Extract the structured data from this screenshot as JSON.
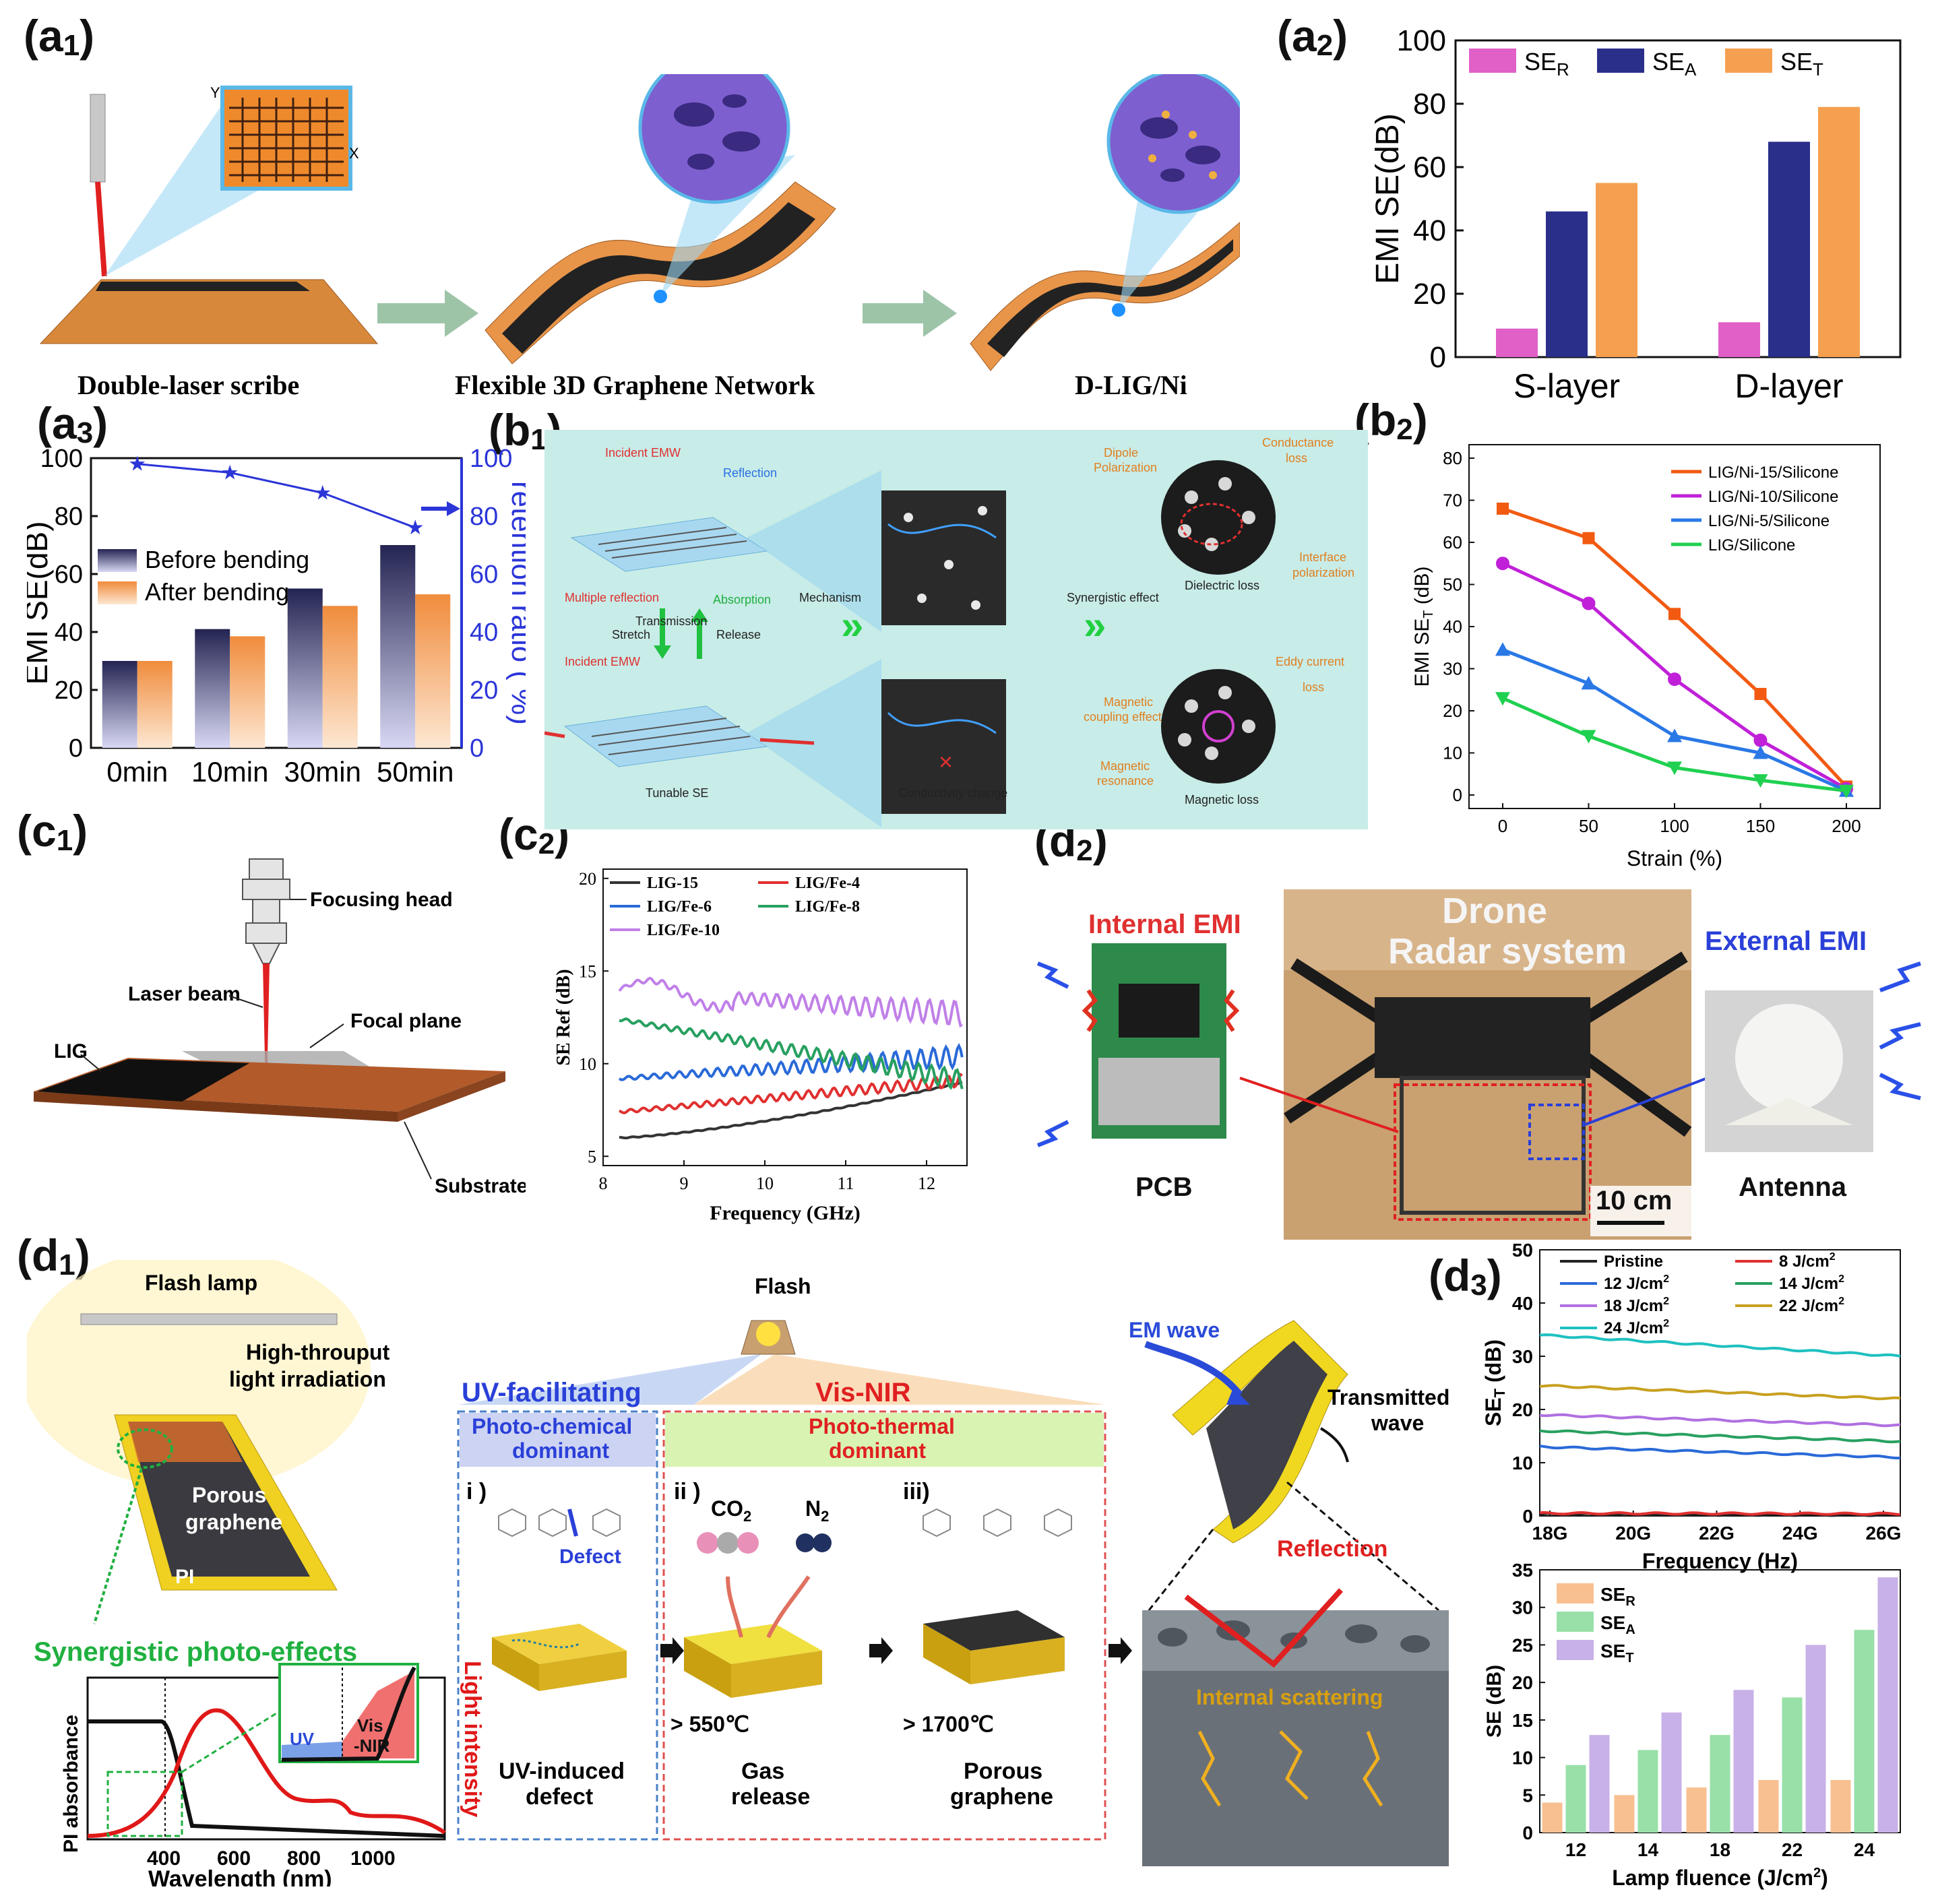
{
  "labels": {
    "a1": {
      "main": "(a",
      "sub": "1",
      "close": ")"
    },
    "a2": {
      "main": "(a",
      "sub": "2",
      "close": ")"
    },
    "a3": {
      "main": "(a",
      "sub": "3",
      "close": ")"
    },
    "b1": {
      "main": "(b",
      "sub": "1",
      "close": ")"
    },
    "b2": {
      "main": "(b",
      "sub": "2",
      "close": ")"
    },
    "c1": {
      "main": "(c",
      "sub": "1",
      "close": ")"
    },
    "c2": {
      "main": "(c",
      "sub": "2",
      "close": ")"
    },
    "d1": {
      "main": "(d",
      "sub": "1",
      "close": ")"
    },
    "d2": {
      "main": "(d",
      "sub": "2",
      "close": ")"
    },
    "d3": {
      "main": "(d",
      "sub": "3",
      "close": ")"
    }
  },
  "a1": {
    "axis_y": "Y",
    "axis_x": "X",
    "step1": "Double-laser scribe",
    "step2": "Flexible 3D Graphene Network",
    "step3": "D-LIG/Ni"
  },
  "b1": {
    "incident_top": "Incident EMW",
    "reflection": "Reflection",
    "multiple_reflection": "Multiple reflection",
    "absorption": "Absorption",
    "transmission": "Transmission",
    "stretch": "Stretch",
    "release": "Release",
    "incident_bottom": "Incident EMW",
    "tunable": "Tunable SE",
    "mechanism": "Mechanism",
    "conductivity_change": "Conductivity change",
    "synergistic": "Synergistic effect",
    "dipole": "Dipole",
    "polarization": "Polarization",
    "conductance": "Conductance",
    "loss": "loss",
    "interface": "Interface",
    "interface_pol": "polarization",
    "dielectric_loss": "Dielectric loss",
    "eddy": "Eddy current",
    "eddy_loss": "loss",
    "magnetic": "Magnetic",
    "coupling": "coupling effect",
    "magnetic2": "Magnetic",
    "resonance": "resonance",
    "magnetic_loss": "Magnetic loss"
  },
  "c1": {
    "focusing_head": "Focusing head",
    "laser_beam": "Laser beam",
    "focal_plane": "Focal  plane",
    "lig": "LIG",
    "substrate": "Substrate"
  },
  "d2": {
    "internal": "Internal EMI",
    "external": "External EMI",
    "drone": "Drone",
    "radar": "Radar system",
    "pcb": "PCB",
    "antenna": "Antenna",
    "scale": "10 cm"
  },
  "d1": {
    "flash_lamp": "Flash lamp",
    "high_throughput": "High-throuput",
    "light_irr": "light irradiation",
    "porous": "Porous",
    "graphene": "graphene",
    "pi": "PI",
    "synergistic": "Synergistic photo-effects",
    "flash": "Flash",
    "uv_fac": "UV-facilitating",
    "vis_nir": "Vis-NIR",
    "photo_chem": "Photo-chemical",
    "dominant1": "dominant",
    "photo_therm": "Photo-thermal",
    "dominant2": "dominant",
    "step_i": "i )",
    "step_ii": "ii )",
    "step_iii": "iii)",
    "defect": "Defect",
    "co2": "CO",
    "co2_sub": "2",
    "n2": "N",
    "n2_sub": "2",
    "t550": "> 550℃",
    "t1700": "> 1700℃",
    "uv_induced": "UV-induced",
    "defect2": "defect",
    "gas": "Gas",
    "release": "release",
    "porous2": "Porous",
    "graphene2": "graphene",
    "em_wave": "EM wave",
    "transmitted": "Transmitted",
    "wave": "wave",
    "reflection": "Reflection",
    "internal_scattering": "Internal scattering",
    "ylabel_left": "PI absorbance",
    "ylabel_right": "Light intensity",
    "xlabel": "Wavelength (nm)",
    "xticks": [
      "400",
      "600",
      "800",
      "1000"
    ],
    "inset_uv": "UV",
    "inset_vis": "Vis",
    "inset_nir": "-NIR"
  },
  "chart_data": [
    {
      "id": "a2",
      "type": "bar",
      "categories": [
        "S-layer",
        "D-layer"
      ],
      "series": [
        {
          "name": "SE",
          "sub": "R",
          "values": [
            9,
            11
          ]
        },
        {
          "name": "SE",
          "sub": "A",
          "values": [
            46,
            68
          ]
        },
        {
          "name": "SE",
          "sub": "T",
          "values": [
            55,
            79
          ]
        }
      ],
      "ylabel": "EMI SE(dB)",
      "ylim": [
        0,
        100
      ],
      "yticks": [
        "0",
        "20",
        "40",
        "60",
        "80",
        "100"
      ],
      "colors": [
        "#e060c8",
        "#2a2f8a",
        "#f5a050"
      ]
    },
    {
      "id": "a3",
      "type": "bar+line",
      "categories": [
        "0min",
        "10min",
        "30min",
        "50min"
      ],
      "series": [
        {
          "name": "Before bending",
          "values": [
            30,
            41,
            55,
            70
          ]
        },
        {
          "name": "After bending",
          "values": [
            30,
            38.5,
            49,
            53
          ]
        }
      ],
      "line": {
        "name": "retention ratio",
        "values": [
          98,
          95,
          88,
          76
        ]
      },
      "ylabel": "EMI SE(dB)",
      "ylabel_right": "retention ratio ( %)",
      "ylim": [
        0,
        100
      ],
      "yticks": [
        "0",
        "20",
        "40",
        "60",
        "80",
        "100"
      ],
      "colors": [
        "#242452",
        "#f08c3c",
        "#2b35d8"
      ]
    },
    {
      "id": "b2",
      "type": "line",
      "x": [
        0,
        50,
        100,
        150,
        200
      ],
      "series": [
        {
          "name": "LIG/Ni-15/Silicone",
          "values": [
            68,
            61,
            43,
            24,
            2
          ]
        },
        {
          "name": "LIG/Ni-10/Silicone",
          "values": [
            55,
            45.5,
            27.5,
            13,
            1.5
          ]
        },
        {
          "name": "LIG/Ni-5/Silicone",
          "values": [
            34.5,
            26.5,
            14,
            10,
            1
          ]
        },
        {
          "name": "LIG/Silicone",
          "values": [
            23,
            14,
            6.5,
            3.5,
            1
          ]
        }
      ],
      "xlabel": "Strain (%)",
      "ylabel": "EMI SE",
      "ylabel_sub": "T",
      "ylabel_unit": " (dB)",
      "xlim": [
        0,
        200
      ],
      "ylim": [
        0,
        80
      ],
      "xticks": [
        "0",
        "50",
        "100",
        "150",
        "200"
      ],
      "yticks": [
        "0",
        "10",
        "20",
        "30",
        "40",
        "50",
        "60",
        "70",
        "80"
      ],
      "colors": [
        "#f25a12",
        "#c020d8",
        "#2a78e6",
        "#20d050"
      ]
    },
    {
      "id": "c2",
      "type": "line",
      "series": [
        {
          "name": "LIG-15",
          "start": 6.0,
          "end": 9.0
        },
        {
          "name": "LIG/Fe-4",
          "start": 7.4,
          "end": 9.1
        },
        {
          "name": "LIG/Fe-6",
          "start": 9.2,
          "end": 10.4
        },
        {
          "name": "LIG/Fe-8",
          "start": 12.4,
          "end": 9.1
        },
        {
          "name": "LIG/Fe-10",
          "start": 14.0,
          "end": 12.7
        }
      ],
      "xlabel": "Frequency (GHz)",
      "ylabel": "SE Ref (dB)",
      "xlim": [
        8,
        12.5
      ],
      "ylim": [
        4.5,
        20.5
      ],
      "xticks": [
        "8",
        "9",
        "10",
        "11",
        "12"
      ],
      "yticks": [
        "5",
        "10",
        "15",
        "20"
      ],
      "colors": [
        "#333333",
        "#e03030",
        "#2a6ad8",
        "#28a060",
        "#c080e8"
      ]
    },
    {
      "id": "d3_top",
      "type": "line",
      "series": [
        {
          "name": "Pristine",
          "start": 0.3,
          "end": 0.2
        },
        {
          "name": "8  J/cm",
          "sup": "2",
          "start": 0.5,
          "end": 0.4
        },
        {
          "name": "12 J/cm",
          "sup": "2",
          "start": 13.0,
          "end": 11.0
        },
        {
          "name": "14 J/cm",
          "sup": "2",
          "start": 16.0,
          "end": 14.0
        },
        {
          "name": "18 J/cm",
          "sup": "2",
          "start": 19.0,
          "end": 17.0
        },
        {
          "name": "22 J/cm",
          "sup": "2",
          "start": 24.5,
          "end": 22.0
        },
        {
          "name": "24 J/cm",
          "sup": "2",
          "start": 34.0,
          "end": 30.0
        }
      ],
      "xlabel": "Frequency (Hz)",
      "ylabel": "SE",
      "ylabel_sub": "T",
      "ylabel_unit": " (dB)",
      "ylim": [
        0,
        50
      ],
      "xticks": [
        "18G",
        "20G",
        "22G",
        "24G",
        "26G"
      ],
      "yticks": [
        "0",
        "10",
        "20",
        "30",
        "40",
        "50"
      ],
      "colors": [
        "#222222",
        "#e03030",
        "#2a6ad8",
        "#28a060",
        "#b070e0",
        "#c8a020",
        "#20c0c0"
      ]
    },
    {
      "id": "d3_bottom",
      "type": "bar",
      "categories": [
        "12",
        "14",
        "18",
        "22",
        "24"
      ],
      "series": [
        {
          "name": "SE",
          "sub": "R",
          "values": [
            4,
            5,
            6,
            7,
            7
          ]
        },
        {
          "name": "SE",
          "sub": "A",
          "values": [
            9,
            11,
            13,
            18,
            27
          ]
        },
        {
          "name": "SE",
          "sub": "T",
          "values": [
            13,
            16,
            19,
            25,
            34
          ]
        }
      ],
      "xlabel": "Lamp fluence (J/cm",
      "xlabel_sup": "2",
      "xlabel_close": ")",
      "ylabel": "SE (dB)",
      "ylim": [
        0,
        35
      ],
      "yticks": [
        "0",
        "5",
        "10",
        "15",
        "20",
        "25",
        "30",
        "35"
      ],
      "colors": [
        "#f8c090",
        "#98e0a8",
        "#c8b0e8"
      ]
    }
  ]
}
